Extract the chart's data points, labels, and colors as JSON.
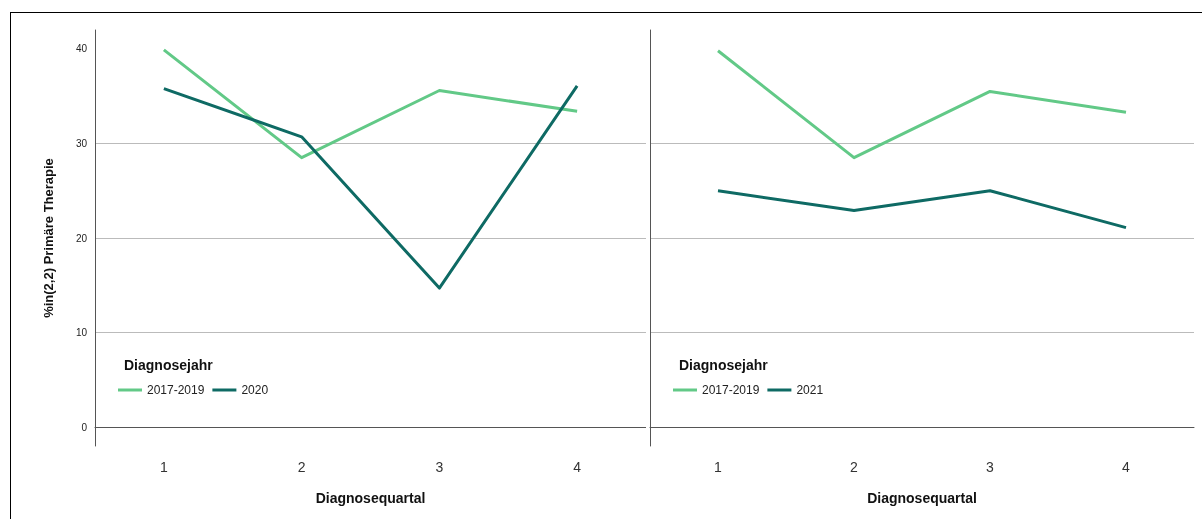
{
  "chart_data": [
    {
      "type": "line",
      "xlabel": "Diagnosequartal",
      "ylabel": "%in(2,2) Primäre Therapie",
      "legend_title": "Diagnosejahr",
      "categories": [
        "1",
        "2",
        "3",
        "4"
      ],
      "series": [
        {
          "name": "2017-2019",
          "color": "#62c987",
          "values": [
            39.9,
            28.5,
            35.6,
            33.4
          ]
        },
        {
          "name": "2020",
          "color": "#0e6a64",
          "values": [
            35.8,
            30.7,
            14.7,
            36.1
          ]
        }
      ],
      "ylim": [
        -2,
        42
      ],
      "yticks": [
        0,
        10,
        20,
        30,
        40
      ],
      "grid": "y",
      "legend": "bottom left",
      "marker": "none",
      "line_style": "solid"
    },
    {
      "type": "line",
      "xlabel": "Diagnosequartal",
      "legend_title": "Diagnosejahr",
      "categories": [
        "1",
        "2",
        "3",
        "4"
      ],
      "series": [
        {
          "name": "2017-2019",
          "color": "#62c987",
          "values": [
            39.8,
            28.5,
            35.5,
            33.3
          ]
        },
        {
          "name": "2021",
          "color": "#0e6a64",
          "values": [
            25.0,
            22.9,
            25.0,
            21.1
          ]
        }
      ],
      "ylim": [
        -2,
        42
      ],
      "yticks": [
        0,
        10,
        20,
        30,
        40
      ],
      "grid": "y",
      "legend": "bottom left",
      "marker": "none",
      "line_style": "solid",
      "tick_labels": "x"
    }
  ]
}
